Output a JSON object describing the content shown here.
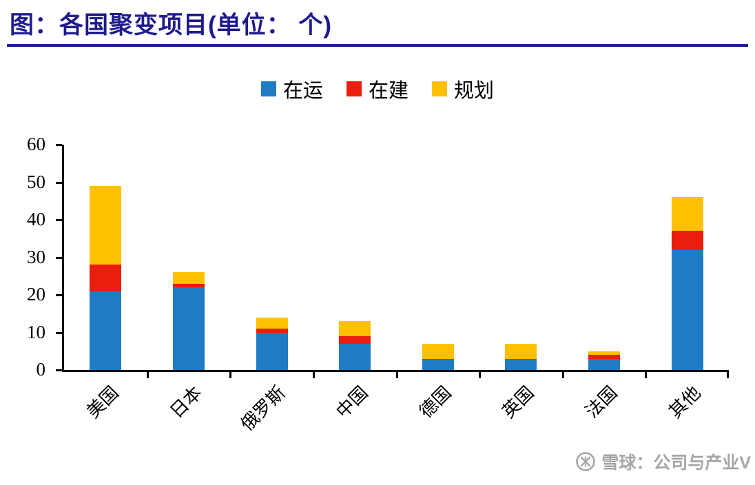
{
  "page": {
    "title": "图：各国聚变项目(单位： 个)"
  },
  "colors": {
    "title_navy": "#1f1b8c",
    "axis_black": "#000000",
    "watermark_gray": "#a6a6a6"
  },
  "watermark": {
    "text": "雪球：公司与产业V"
  },
  "chart_data": {
    "type": "bar",
    "stacked": true,
    "title": "各国聚变项目(单位：个)",
    "xlabel": "",
    "ylabel": "",
    "categories": [
      "美国",
      "日本",
      "俄罗斯",
      "中国",
      "德国",
      "英国",
      "法国",
      "其他"
    ],
    "series": [
      {
        "name": "在运",
        "color": "#1f7cc4",
        "values": [
          21,
          22,
          10,
          7,
          3,
          3,
          3,
          32
        ]
      },
      {
        "name": "在建",
        "color": "#e91e0e",
        "values": [
          7,
          1,
          1,
          2,
          0,
          0,
          1,
          5
        ]
      },
      {
        "name": "规划",
        "color": "#ffc000",
        "values": [
          21,
          3,
          3,
          4,
          4,
          4,
          1,
          9
        ]
      }
    ],
    "totals": [
      49,
      26,
      14,
      13,
      7,
      7,
      5,
      46
    ],
    "ylim": [
      0,
      60
    ],
    "ytick_step": 10,
    "yticks": [
      0,
      10,
      20,
      30,
      40,
      50,
      60
    ],
    "legend_position": "top",
    "grid": false
  }
}
